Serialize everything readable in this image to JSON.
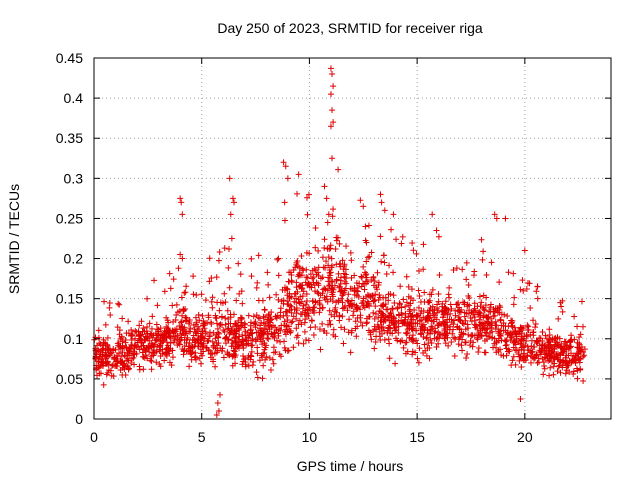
{
  "chart_data": {
    "type": "scatter",
    "title": "Day 250 of 2023, SRMTID for receiver riga",
    "xlabel": "GPS time / hours",
    "ylabel": "SRMTID / TECUs",
    "xlim": [
      0,
      24
    ],
    "ylim": [
      0,
      0.45
    ],
    "xticks": [
      0,
      5,
      10,
      15,
      20
    ],
    "xtick_labels": [
      "0",
      "5",
      "10",
      "15",
      "20"
    ],
    "yticks": [
      0,
      0.05,
      0.1,
      0.15,
      0.2,
      0.25,
      0.3,
      0.35,
      0.4,
      0.45
    ],
    "ytick_labels": [
      "0",
      "0.05",
      "0.1",
      "0.15",
      "0.2",
      "0.25",
      "0.3",
      "0.35",
      "0.4",
      "0.45"
    ],
    "grid": true,
    "marker": "+",
    "color": "#e00000",
    "series": [
      {
        "name": "riga",
        "envelope": {
          "x": [
            0,
            1,
            2,
            3,
            4,
            5,
            6,
            7,
            8,
            9,
            10,
            11,
            12,
            13,
            14,
            15,
            16,
            17,
            18,
            19,
            20,
            21,
            22,
            22.8
          ],
          "y": [
            0.08,
            0.075,
            0.09,
            0.095,
            0.11,
            0.1,
            0.11,
            0.1,
            0.105,
            0.14,
            0.165,
            0.165,
            0.15,
            0.14,
            0.12,
            0.12,
            0.125,
            0.12,
            0.12,
            0.11,
            0.095,
            0.085,
            0.08,
            0.08
          ],
          "spread": [
            0.03,
            0.03,
            0.03,
            0.035,
            0.04,
            0.04,
            0.045,
            0.04,
            0.045,
            0.06,
            0.07,
            0.07,
            0.06,
            0.055,
            0.045,
            0.045,
            0.045,
            0.045,
            0.045,
            0.04,
            0.035,
            0.03,
            0.03,
            0.03
          ]
        },
        "outliers": [
          [
            4.0,
            0.275
          ],
          [
            4.05,
            0.27
          ],
          [
            4.1,
            0.255
          ],
          [
            4.0,
            0.205
          ],
          [
            4.1,
            0.2
          ],
          [
            5.75,
            0.02
          ],
          [
            5.8,
            0.01
          ],
          [
            5.7,
            0.005
          ],
          [
            5.85,
            0.03
          ],
          [
            6.3,
            0.3
          ],
          [
            6.45,
            0.275
          ],
          [
            6.5,
            0.27
          ],
          [
            6.35,
            0.255
          ],
          [
            6.4,
            0.225
          ],
          [
            8.8,
            0.32
          ],
          [
            8.9,
            0.315
          ],
          [
            9.0,
            0.3
          ],
          [
            8.85,
            0.27
          ],
          [
            9.5,
            0.305
          ],
          [
            10.7,
            0.29
          ],
          [
            10.8,
            0.275
          ],
          [
            10.9,
            0.255
          ],
          [
            10.85,
            0.245
          ],
          [
            11.0,
            0.437
          ],
          [
            11.05,
            0.43
          ],
          [
            11.1,
            0.415
          ],
          [
            11.0,
            0.405
          ],
          [
            11.05,
            0.385
          ],
          [
            11.1,
            0.37
          ],
          [
            11.0,
            0.365
          ],
          [
            11.05,
            0.325
          ],
          [
            12.5,
            0.265
          ],
          [
            12.6,
            0.24
          ],
          [
            13.3,
            0.28
          ],
          [
            13.35,
            0.27
          ],
          [
            13.5,
            0.26
          ],
          [
            13.9,
            0.255
          ],
          [
            15.7,
            0.255
          ],
          [
            15.9,
            0.235
          ],
          [
            18.6,
            0.255
          ],
          [
            18.7,
            0.25
          ],
          [
            19.1,
            0.25
          ],
          [
            20.0,
            0.21
          ],
          [
            19.8,
            0.025
          ],
          [
            20.6,
            0.15
          ],
          [
            22.7,
            0.115
          ]
        ]
      }
    ]
  }
}
